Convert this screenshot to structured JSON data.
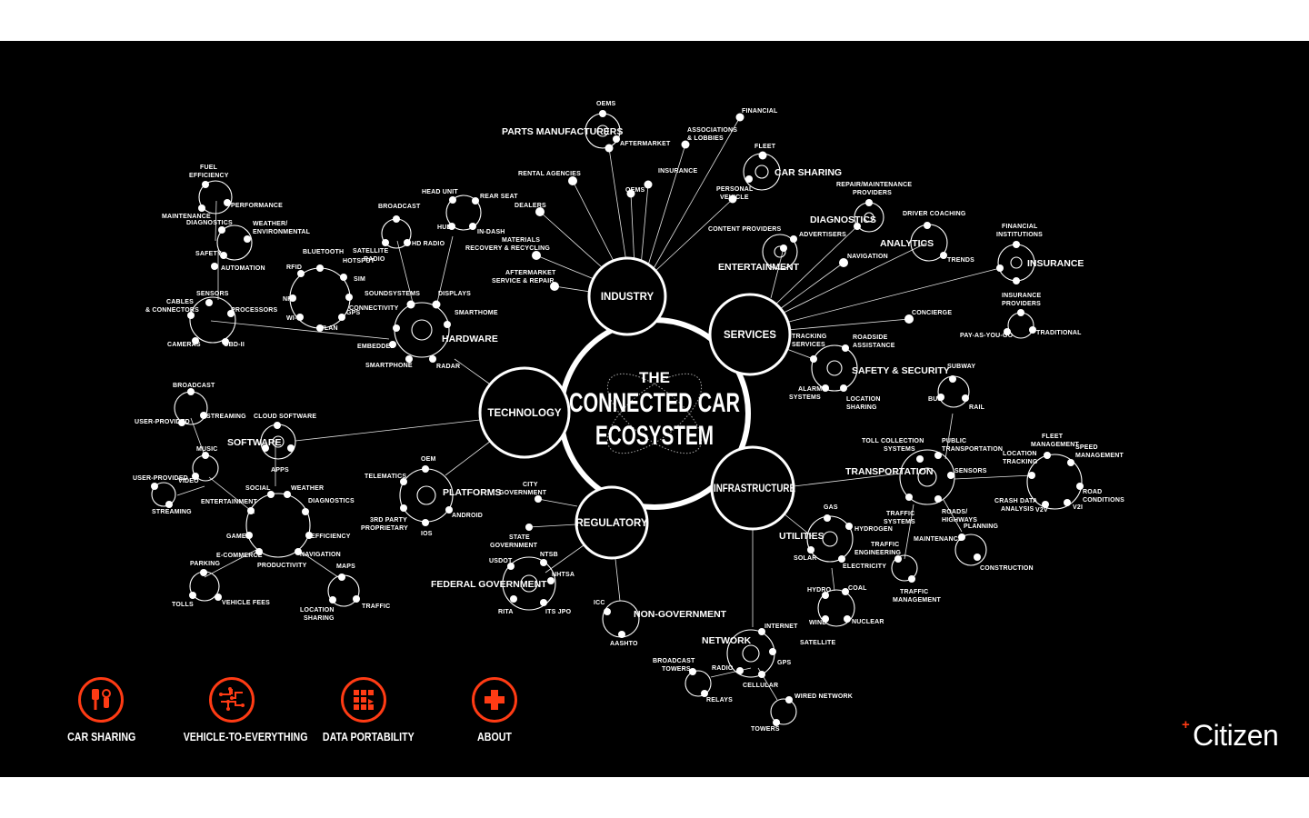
{
  "title": {
    "line1": "THE",
    "line2": "CONNECTED CAR",
    "line3": "ECOSYSTEM"
  },
  "hubs": {
    "industry": "INDUSTRY",
    "services": "SERVICES",
    "technology": "TECHNOLOGY",
    "regulatory": "REGULATORY",
    "infrastructure": "INFRASTRUCTURE"
  },
  "clusters": {
    "parts_manufacturers": "PARTS MANUFACTURERS",
    "car_sharing": "CAR SHARING",
    "diagnostics": "DIAGNOSTICS",
    "analytics": "ANALYTICS",
    "insurance": "INSURANCE",
    "entertainment": "ENTERTAINMENT",
    "safety_security": "SAFETY & SECURITY",
    "hardware": "HARDWARE",
    "software": "SOFTWARE",
    "platforms": "PLATFORMS",
    "federal_government": "FEDERAL GOVERNMENT",
    "non_government": "NON-GOVERNMENT",
    "transportation": "TRANSPORTATION",
    "utilities": "UTILITIES",
    "network": "NETWORK"
  },
  "labels": {
    "oems": "OEMS",
    "aftermarket": "AFTERMARKET",
    "financial": "FINANCIAL",
    "assoc1": "ASSOCIATIONS",
    "assoc2": "& LOBBIES",
    "fleet": "FLEET",
    "rental": "RENTAL AGENCIES",
    "insurance_i": "INSURANCE",
    "oems2": "OEMS",
    "personal1": "PERSONAL",
    "personal2": "VEHICLE",
    "dealers": "DEALERS",
    "materials1": "MATERIALS",
    "materials2": "RECOVERY & RECYCLING",
    "am_service1": "AFTERMARKET",
    "am_service2": "SERVICE & REPAIR",
    "repair1": "REPAIR/MAINTENANCE",
    "repair2": "PROVIDERS",
    "driver_coaching": "DRIVER COACHING",
    "content_providers": "CONTENT PROVIDERS",
    "advertisers": "ADVERTISERS",
    "fin_inst1": "FINANCIAL",
    "fin_inst2": "INSTITUTIONS",
    "navigation_s": "NAVIGATION",
    "trends": "TRENDS",
    "ins_prov1": "INSURANCE",
    "ins_prov2": "PROVIDERS",
    "concierge": "CONCIERGE",
    "pay_as": "PAY-AS-YOU-GO",
    "traditional": "TRADITIONAL",
    "tracking1": "TRACKING",
    "tracking2": "SERVICES",
    "roadside1": "ROADSIDE",
    "roadside2": "ASSISTANCE",
    "alarm1": "ALARM",
    "alarm2": "SYSTEMS",
    "locshare1": "LOCATION",
    "locshare2": "SHARING",
    "fuel1": "FUEL",
    "fuel2": "EFFICIENCY",
    "performance": "PERFORMANCE",
    "maint_diag1": "MAINTENANCE",
    "maint_diag2": "DIAGNOSTICS",
    "weather1": "WEATHER/",
    "weather2": "ENVIRONMENTAL",
    "safety": "SAFETY",
    "automation": "AUTOMATION",
    "head_unit": "HEAD UNIT",
    "rear_seat": "REAR SEAT",
    "broadcast_h": "BROADCAST",
    "hud": "HUD",
    "in_dash": "IN-DASH",
    "hd_radio": "HD RADIO",
    "bluetooth": "BLUETOOTH",
    "hotspot": "HOTSPOT",
    "rfid": "RFID",
    "sim": "SIM",
    "sat_radio1": "SATELLITE",
    "sat_radio2": "RADIO",
    "nfc": "NFC",
    "wifi": "WI-FI",
    "gps_h": "GPS",
    "wlan": "WLAN",
    "connectivity": "CONNECTIVITY",
    "soundsystems": "SOUNDSYSTEMS",
    "displays": "DISPLAYS",
    "sensors_h": "SENSORS",
    "cables1": "CABLES",
    "cables2": "& CONNECTORS",
    "processors": "PROCESSORS",
    "cameras": "CAMERAS",
    "obd": "OBD-II",
    "smarthome": "SMARTHOME",
    "embedded": "EMBEDDED",
    "smartphone": "SMARTPHONE",
    "radar": "RADAR",
    "broadcast_s": "BROADCAST",
    "user_provided": "USER-PROVIDED",
    "streaming": "STREAMING",
    "cloud_software": "CLOUD SOFTWARE",
    "apps": "APPS",
    "music": "MUSIC",
    "user_provided2": "USER-PROVIDED",
    "video": "VIDEO",
    "streaming2": "STREAMING",
    "social": "SOCIAL",
    "weather_s": "WEATHER",
    "entertainment_s": "ENTERTAINMENT",
    "diagnostics_s": "DIAGNOSTICS",
    "games": "GAMES",
    "efficiency": "EFFICIENCY",
    "ecommerce": "E-COMMERCE",
    "navigation_t": "NAVIGATION",
    "productivity": "PRODUCTIVITY",
    "parking": "PARKING",
    "maps": "MAPS",
    "tolls": "TOLLS",
    "vehicle_fees": "VEHICLE FEES",
    "locshare_t1": "LOCATION",
    "locshare_t2": "SHARING",
    "traffic_t": "TRAFFIC",
    "oem_p": "OEM",
    "telematics": "TELEMATICS",
    "third1": "3RD PARTY",
    "third2": "PROPRIETARY",
    "android": "ANDROID",
    "ios": "IOS",
    "city1": "CITY",
    "city2": "GOVERNMENT",
    "state1": "STATE",
    "state2": "GOVERNMENT",
    "usdot": "USDOT",
    "ntsb": "NTSB",
    "nhtsa": "NHTSA",
    "rita": "RITA",
    "its_jpo": "ITS JPO",
    "icc": "ICC",
    "aashto": "AASHTO",
    "subway": "SUBWAY",
    "bus": "BUS",
    "rail": "RAIL",
    "toll1": "TOLL COLLECTION",
    "toll2": "SYSTEMS",
    "public1": "PUBLIC",
    "public2": "TRANSPORTATION",
    "fleet_m1": "FLEET",
    "fleet_m2": "MANAGEMENT",
    "speed1": "SPEED",
    "speed2": "MANAGEMENT",
    "loctrack1": "LOCATION",
    "loctrack2": "TRACKING",
    "sensors_i": "SENSORS",
    "road1": "ROAD",
    "road2": "CONDITIONS",
    "crash1": "CRASH DATA",
    "crash2": "ANALYSIS",
    "v2v": "V2V",
    "v2i": "V2I",
    "traffic_sys1": "TRAFFIC",
    "traffic_sys2": "SYSTEMS",
    "roads1": "ROADS/",
    "roads2": "HIGHWAYS",
    "planning": "PLANNING",
    "maintenance_i": "MAINTENANCE",
    "construction": "CONSTRUCTION",
    "traffic_eng1": "TRAFFIC",
    "traffic_eng2": "ENGINEERING",
    "traffic_mgmt1": "TRAFFIC",
    "traffic_mgmt2": "MANAGEMENT",
    "gas": "GAS",
    "hydrogen": "HYDROGEN",
    "solar": "SOLAR",
    "electricity": "ELECTRICITY",
    "hydro": "HYDRO",
    "coal": "COAL",
    "wind": "WIND",
    "nuclear": "NUCLEAR",
    "internet": "INTERNET",
    "satellite": "SATELLITE",
    "gps_n": "GPS",
    "bcast_towers1": "BROADCAST",
    "bcast_towers2": "TOWERS",
    "radio": "RADIO",
    "cellular": "CELLULAR",
    "relays": "RELAYS",
    "wired": "WIRED NETWORK",
    "towers": "TOWERS"
  },
  "nav": [
    {
      "label": "CAR SHARING",
      "icon": "car-sharing-icon"
    },
    {
      "label": "VEHICLE-TO-EVERYTHING",
      "icon": "circuit-icon"
    },
    {
      "label": "DATA PORTABILITY",
      "icon": "data-grid-icon"
    },
    {
      "label": "ABOUT",
      "icon": "plus-icon"
    }
  ],
  "brand": {
    "name": "Citizen",
    "mark": "+"
  },
  "colors": {
    "accent": "#ff3b14",
    "background": "#000000",
    "foreground": "#ffffff"
  }
}
